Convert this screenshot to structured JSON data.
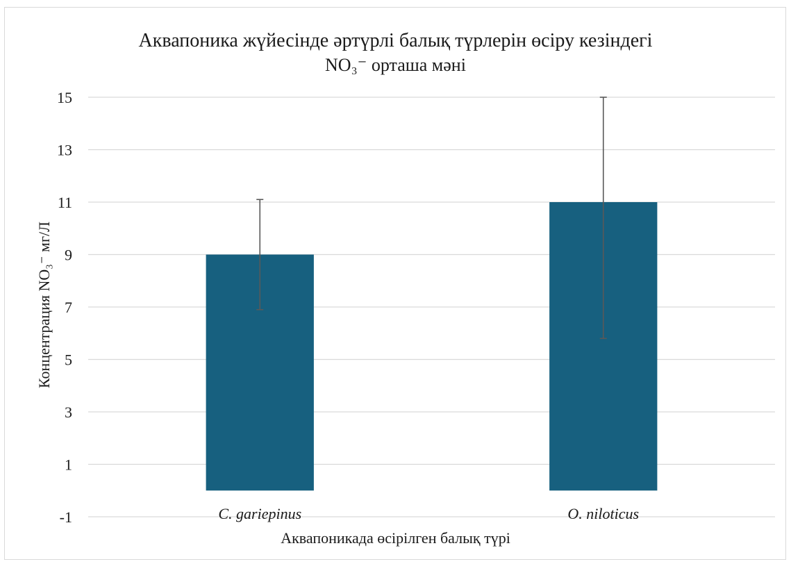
{
  "chart_data": {
    "type": "bar",
    "title": "Аквапоника жүйесінде әртүрлі балық түрлерін өсіру кезіндегі",
    "subtitle": "NO₃⁻ орташа мәні",
    "xlabel": "Аквапоникада өсірілген балық түрі",
    "ylabel": "Концентрация NO₃⁻ мг/Л",
    "categories": [
      "C. gariepinus",
      "O. niloticus"
    ],
    "values": [
      9,
      11
    ],
    "error_low": [
      6.9,
      5.8
    ],
    "error_high": [
      11.1,
      15.0
    ],
    "ylim": [
      -1,
      15
    ],
    "yticks": [
      -1,
      1,
      3,
      5,
      7,
      9,
      11,
      13,
      15
    ],
    "grid": true,
    "legend": "none",
    "bar_color": "#17607f",
    "error_color": "#595959",
    "grid_color": "#d9d9d9"
  }
}
